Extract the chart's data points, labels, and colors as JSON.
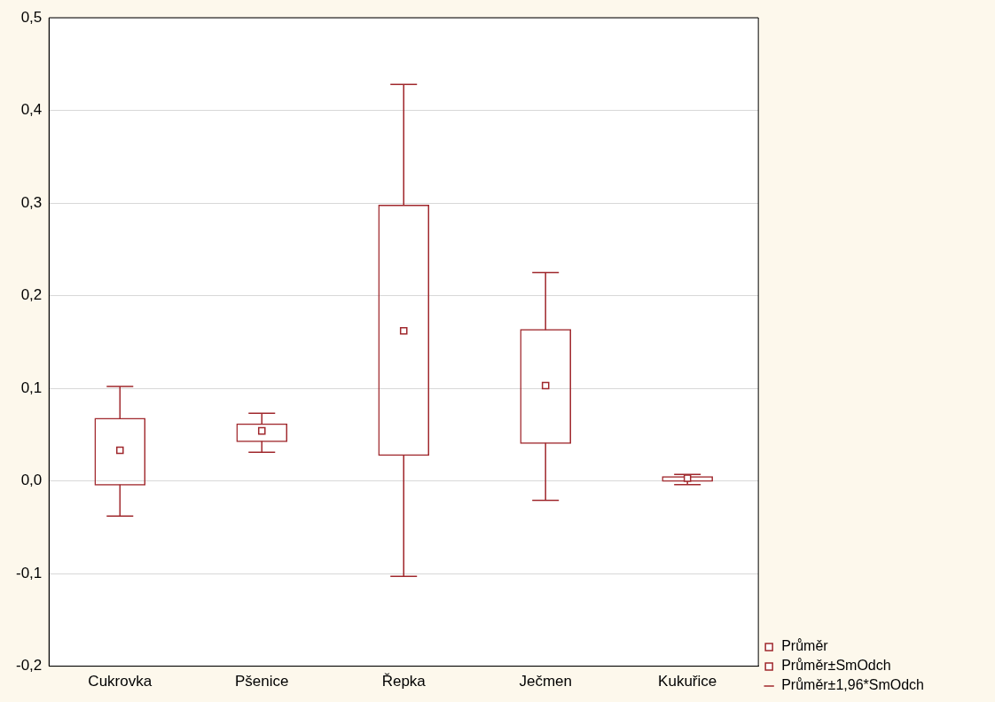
{
  "chart_data": {
    "type": "box",
    "categories": [
      "Cukrovka",
      "Pšenice",
      "Řepka",
      "Ječmen",
      "Kukuřice"
    ],
    "series": [
      {
        "name": "Průměr",
        "type": "scatter",
        "color": "#a0282d",
        "marker": "square",
        "values": [
          0.033,
          0.054,
          0.162,
          0.103,
          0.003
        ],
        "errors": [
          [
            -0.038,
            0.102
          ],
          [
            0.031,
            0.073
          ],
          [
            -0.103,
            0.428
          ],
          [
            -0.021,
            0.225
          ],
          [
            -0.004,
            0.007
          ]
        ]
      },
      {
        "name": "Průměr±SmOdch",
        "type": "bar",
        "color": "#a0282d",
        "base": [
          -0.005,
          0.042,
          0.027,
          0.04,
          -0.001
        ],
        "values": [
          0.073,
          0.02,
          0.271,
          0.124,
          0.006
        ]
      }
    ],
    "annotations": [
      "Průměr±1,96*SmOdch"
    ],
    "ylim": [
      -0.2,
      0.5
    ],
    "yticks": [
      {
        "value": -0.2,
        "label": "-0,2"
      },
      {
        "value": -0.1,
        "label": "-0,1"
      },
      {
        "value": 0,
        "label": "0,0"
      },
      {
        "value": 0.1,
        "label": "0,1"
      },
      {
        "value": 0.2,
        "label": "0,2"
      },
      {
        "value": 0.3,
        "label": "0,3"
      },
      {
        "value": 0.4,
        "label": "0,4"
      },
      {
        "value": 0.5,
        "label": "0,5"
      }
    ],
    "grid": "y",
    "legend": "bottom right"
  }
}
